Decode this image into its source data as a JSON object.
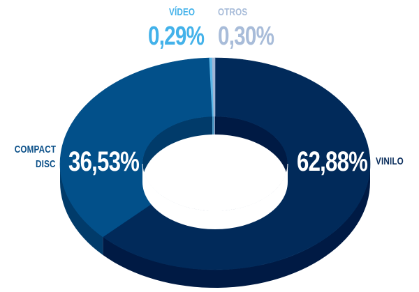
{
  "chart_data": {
    "type": "pie",
    "style": "3d-donut",
    "title": "",
    "slices": [
      {
        "label": "VINILO",
        "value": 62.88,
        "value_label": "62,88%",
        "color": "#012a5a",
        "side_color": "#001a44"
      },
      {
        "label": "COMPACT DISC",
        "value": 36.53,
        "value_label": "36,53%",
        "color": "#02508a",
        "side_color": "#013b6a"
      },
      {
        "label": "VÍDEO",
        "value": 0.29,
        "value_label": "0,29%",
        "color": "#5ab6e6",
        "side_color": "#3f95c4"
      },
      {
        "label": "OTROS",
        "value": 0.3,
        "value_label": "0,30%",
        "color": "#9fb6d6",
        "side_color": "#7d96ba"
      }
    ],
    "labels": {
      "vinilo": {
        "name": "VINILO",
        "pct": "62,88%",
        "name_color": "#0a2d5c",
        "pct_color": "#ffffff"
      },
      "cd": {
        "name_line1": "COMPACT",
        "name_line2": "DISC",
        "pct": "36,53%",
        "name_color": "#0a4f88",
        "pct_color": "#ffffff"
      },
      "video": {
        "name": "VÍDEO",
        "pct": "0,29%",
        "color": "#43b2ea"
      },
      "otros": {
        "name": "OTROS",
        "pct": "0,30%",
        "color": "#a8bcd9"
      }
    }
  }
}
